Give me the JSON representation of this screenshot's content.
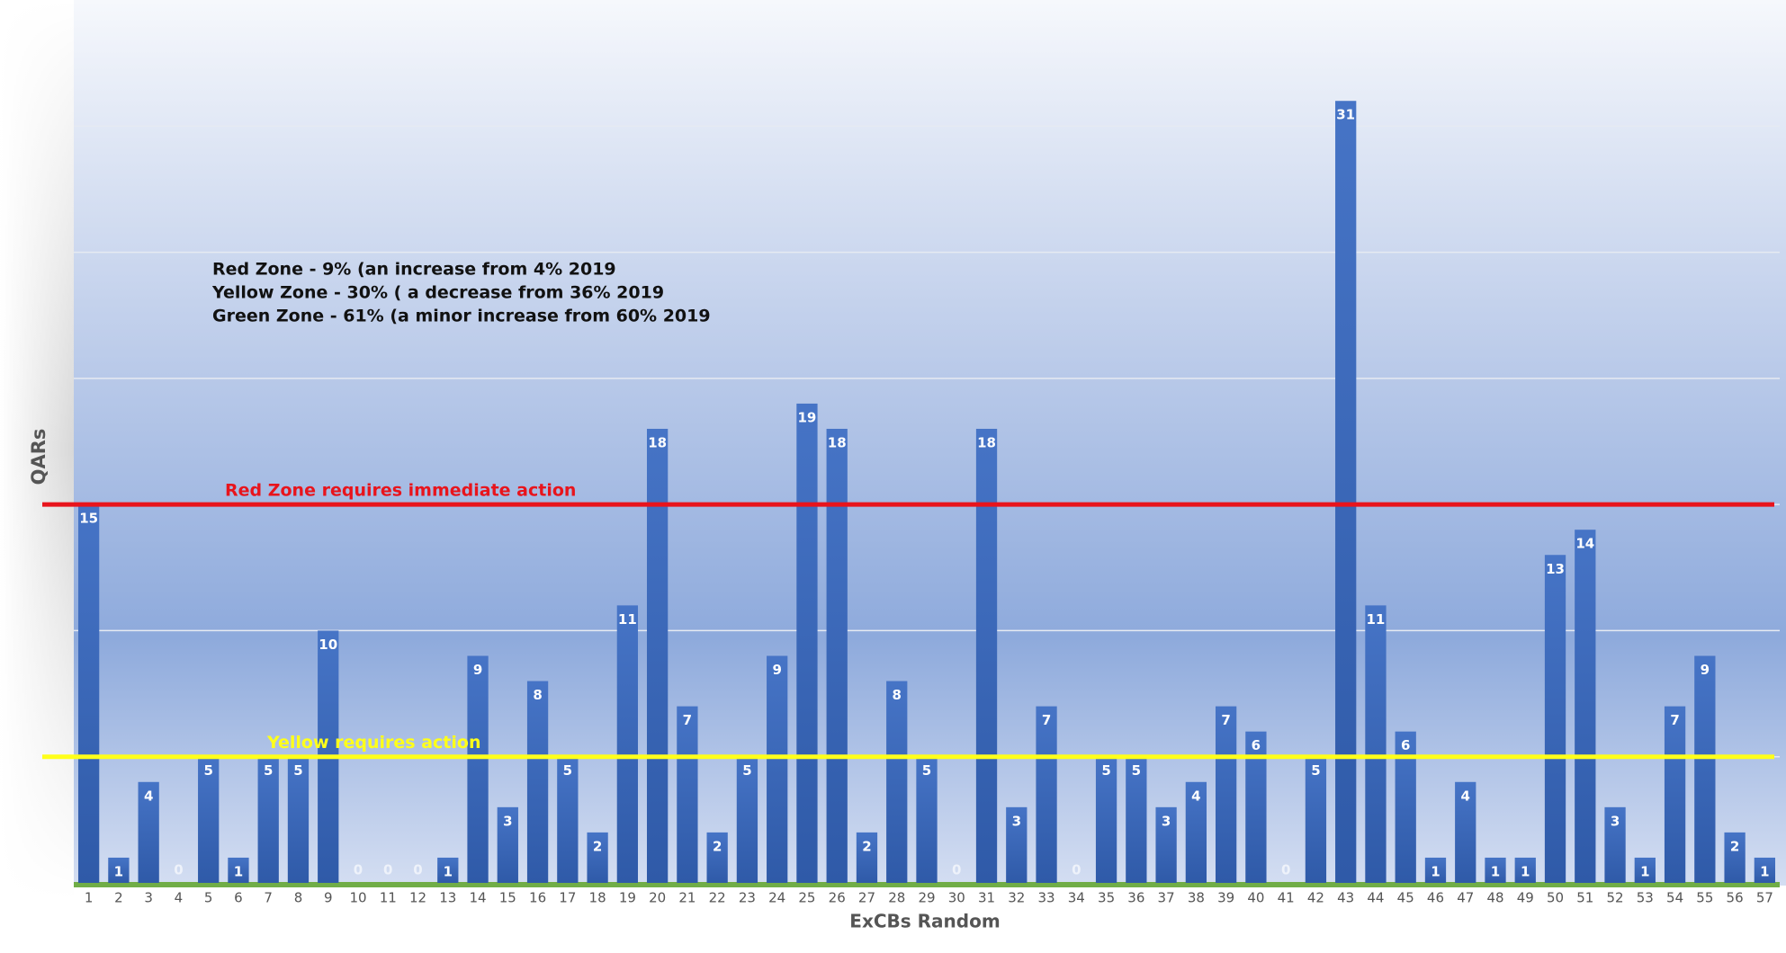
{
  "chart_data": {
    "type": "bar",
    "x_label": "ExCBs Random",
    "y_label": "QARs",
    "annotations": [
      "Red Zone - 9% (an increase from 4% 2019",
      "Yellow Zone - 30% ( a decrease from 36% 2019",
      "Green Zone - 61% (a minor increase from 60% 2019"
    ],
    "categories": [
      "1",
      "2",
      "3",
      "4",
      "5",
      "6",
      "7",
      "8",
      "9",
      "10",
      "11",
      "12",
      "13",
      "14",
      "15",
      "16",
      "17",
      "18",
      "19",
      "20",
      "21",
      "22",
      "23",
      "24",
      "25",
      "26",
      "27",
      "28",
      "29",
      "30",
      "31",
      "32",
      "33",
      "34",
      "35",
      "36",
      "37",
      "38",
      "39",
      "40",
      "41",
      "42",
      "43",
      "44",
      "45",
      "46",
      "47",
      "48",
      "49",
      "50",
      "51",
      "52",
      "53",
      "54",
      "55",
      "56",
      "57"
    ],
    "values": [
      15,
      1,
      4,
      0,
      5,
      1,
      5,
      5,
      10,
      0,
      0,
      0,
      1,
      9,
      3,
      8,
      5,
      2,
      11,
      18,
      7,
      2,
      5,
      9,
      19,
      18,
      2,
      8,
      5,
      0,
      18,
      3,
      7,
      0,
      5,
      5,
      3,
      4,
      7,
      6,
      0,
      5,
      31,
      11,
      6,
      1,
      4,
      1,
      1,
      13,
      14,
      3,
      1,
      7,
      9,
      2,
      1
    ],
    "color": "#4472c4",
    "ylim": [
      0,
      35
    ],
    "yticks": [
      0,
      5,
      10,
      15,
      20,
      25,
      30
    ],
    "grid": true,
    "thresholds": [
      {
        "value": 15,
        "label": "Red Zone requires immediate action",
        "color": "#e8141c"
      },
      {
        "value": 5,
        "label": "Yellow requires action",
        "color": "#ffff1a"
      }
    ]
  }
}
